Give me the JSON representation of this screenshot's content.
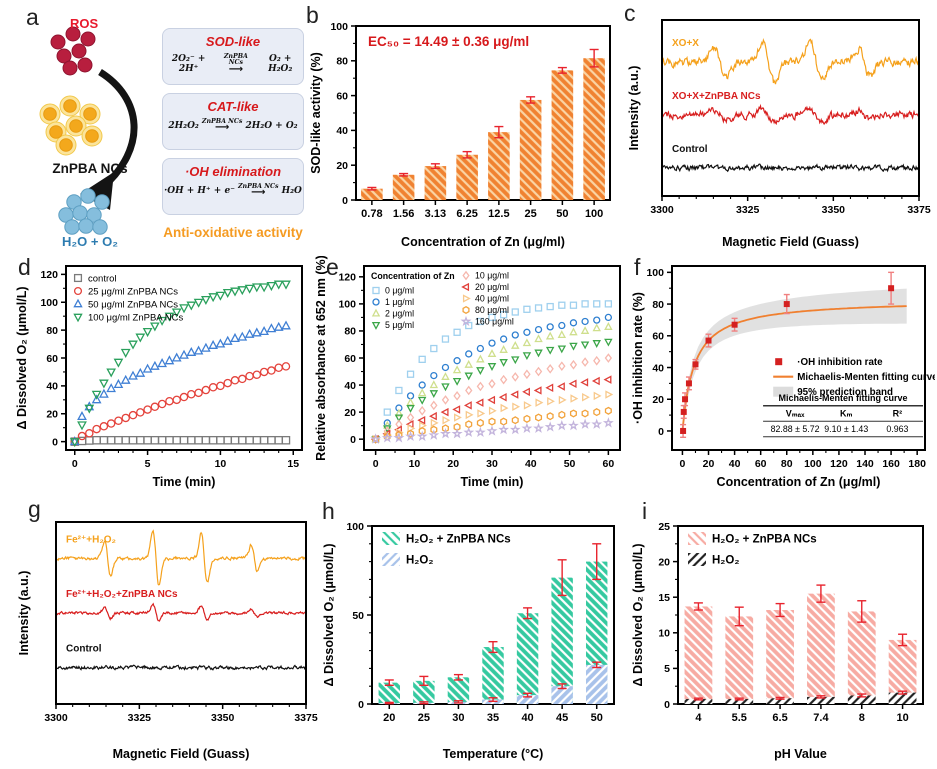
{
  "panels": {
    "a": "a",
    "b": "b",
    "c": "c",
    "d": "d",
    "e": "e",
    "f": "f",
    "g": "g",
    "h": "h",
    "i": "i"
  },
  "panel_a": {
    "label_ros": "ROS",
    "label_nanoclusters": "ZnPBA NCs",
    "label_product": "H₂O + O₂",
    "reactions": [
      {
        "title": "SOD-like",
        "lhs": "2O₂⁻ + 2H⁺",
        "catalyst": "ZnPBA NCs",
        "arrow": "⟶",
        "rhs": "O₂ + H₂O₂"
      },
      {
        "title": "CAT-like",
        "lhs": "2H₂O₂",
        "catalyst": "ZnPBA NCs",
        "arrow": "⟶",
        "rhs": "2H₂O + O₂"
      },
      {
        "title": "·OH elimination",
        "lhs": "·OH + H⁺ + e⁻",
        "catalyst": "ZnPBA NCs",
        "arrow": "⟶",
        "rhs": "H₂O"
      }
    ],
    "footer": "Anti-oxidative activity"
  },
  "chart_data": [
    {
      "panel": "b",
      "type": "bar",
      "annotation": "EC₅₀ = 14.49 ± 0.36 μg/ml",
      "annotation_color": "#D7191C",
      "categories": [
        "0.78",
        "1.56",
        "3.13",
        "6.25",
        "12.5",
        "25",
        "50",
        "100"
      ],
      "xlabel": "Concentration of Zn (μg/ml)",
      "ylabel": "SOD-like activity (%)",
      "ylim": [
        0,
        100
      ],
      "yticks": [
        0,
        20,
        40,
        60,
        80,
        100
      ],
      "y_minor": 1,
      "bar_width": 0.68,
      "error_color": "#E8232D",
      "legend": false,
      "series": [
        {
          "name": "SOD-like activity",
          "fill": "#F08231",
          "stripe": "#FAD4A4",
          "angle": 45,
          "values": [
            6.5,
            14.5,
            19.5,
            26,
            39,
            57.5,
            74.5,
            81.5
          ],
          "errors": [
            0.7,
            0.7,
            1.3,
            1.8,
            3.2,
            1.8,
            1.6,
            5
          ]
        }
      ]
    },
    {
      "panel": "c",
      "type": "epr",
      "xlabel": "Magnetic Field (Guass)",
      "ylabel": "Intensity (a.u.)",
      "xlim": [
        3300,
        3375
      ],
      "xticks": [
        3300,
        3325,
        3350,
        3375
      ],
      "x_minor": 4,
      "traces": [
        {
          "label": "XO+X",
          "color": "#F5A11C",
          "base": 0.24,
          "noise": 3.0,
          "width": 1.7,
          "peaks": [
            3317,
            3331,
            3345,
            3359
          ],
          "amps": [
            30,
            40,
            36,
            26
          ],
          "seed": 7
        },
        {
          "label": "XO+X+ZnPBA NCs",
          "color": "#D81E1E",
          "base": 0.54,
          "noise": 2.6,
          "width": 1.7,
          "peaks": [
            3317,
            3331,
            3345,
            3359
          ],
          "amps": [
            9,
            12,
            11,
            8
          ],
          "seed": 13
        },
        {
          "label": "Control",
          "color": "#111111",
          "base": 0.84,
          "noise": 2.0,
          "width": 1.7,
          "peaks": [],
          "amps": [],
          "seed": 21
        }
      ]
    },
    {
      "panel": "d",
      "type": "scatter",
      "xlabel": "Time (min)",
      "ylabel": "Δ Dissolved O₂ (μmol/L)",
      "xlim": [
        -0.6,
        15.6
      ],
      "xticks": [
        0,
        5,
        10,
        15
      ],
      "x_minor": 4,
      "ylim": [
        -6,
        126
      ],
      "yticks": [
        0,
        20,
        40,
        60,
        80,
        100,
        120
      ],
      "y_minor": 1,
      "x": [
        0,
        0.5,
        1,
        1.5,
        2,
        2.5,
        3,
        3.5,
        4,
        4.5,
        5,
        5.5,
        6,
        6.5,
        7,
        7.5,
        8,
        8.5,
        9,
        9.5,
        10,
        10.5,
        11,
        11.5,
        12,
        12.5,
        13,
        13.5,
        14,
        14.5
      ],
      "series": [
        {
          "name": "control",
          "marker": "square",
          "color": "#7A7A7A",
          "values": [
            0,
            0.5,
            0.8,
            1,
            1,
            1,
            1,
            1,
            1,
            1,
            1,
            1,
            1,
            1,
            1,
            1,
            1,
            1,
            1,
            1,
            1,
            1,
            1,
            1,
            1,
            1,
            1,
            1,
            1,
            1
          ]
        },
        {
          "name": "25 μg/ml ZnPBA NCs",
          "marker": "circle",
          "color": "#E4433C",
          "values": [
            0,
            4,
            6,
            9,
            11,
            13,
            15,
            17,
            19,
            21,
            23,
            25,
            27,
            29,
            30,
            32,
            34,
            35,
            37,
            39,
            40,
            42,
            44,
            45,
            47,
            48,
            50,
            51,
            53,
            54
          ]
        },
        {
          "name": "50 μg/ml ZnPBA NCs",
          "marker": "triangle-up",
          "color": "#3F7FD4",
          "values": [
            0,
            18,
            25,
            30,
            34,
            38,
            41,
            44,
            47,
            49,
            52,
            54,
            56,
            58,
            60,
            62,
            64,
            65,
            67,
            69,
            70,
            72,
            74,
            75,
            77,
            78,
            79,
            81,
            82,
            83
          ]
        },
        {
          "name": "100 μg/ml ZnPBA NCs",
          "marker": "triangle-down",
          "color": "#2AA05C",
          "values": [
            0,
            12,
            24,
            34,
            42,
            50,
            57,
            64,
            70,
            75,
            79,
            83,
            87,
            90,
            93,
            96,
            98,
            100,
            102,
            104,
            105,
            107,
            108,
            109,
            110,
            111,
            111,
            112,
            113,
            113
          ]
        }
      ],
      "legend": {
        "cols": 1
      }
    },
    {
      "panel": "e",
      "type": "scatter",
      "xlabel": "Time (min)",
      "ylabel": "Relative absorbance at 652 nm (%)",
      "xlim": [
        -3,
        63
      ],
      "xticks": [
        0,
        10,
        20,
        30,
        40,
        50,
        60
      ],
      "x_minor": 1,
      "ylim": [
        -8,
        128
      ],
      "yticks": [
        0,
        20,
        40,
        60,
        80,
        100,
        120
      ],
      "y_minor": 1,
      "x": [
        0,
        3,
        6,
        9,
        12,
        15,
        18,
        21,
        24,
        27,
        30,
        33,
        36,
        39,
        42,
        45,
        48,
        51,
        54,
        57,
        60
      ],
      "series": [
        {
          "name": "0 μg/ml",
          "marker": "square",
          "color": "#9FD0EE",
          "values": [
            0,
            20,
            36,
            48,
            59,
            67,
            74,
            79,
            84,
            87,
            90,
            92,
            94,
            96,
            97,
            98,
            99,
            99,
            100,
            100,
            100
          ]
        },
        {
          "name": "1 μg/ml",
          "marker": "circle",
          "color": "#2E7FD0",
          "values": [
            0,
            12,
            23,
            32,
            40,
            47,
            53,
            58,
            63,
            67,
            71,
            74,
            77,
            79,
            81,
            83,
            84,
            86,
            87,
            88,
            90
          ]
        },
        {
          "name": "2 μg/ml",
          "marker": "triangle-up",
          "color": "#CFDF8D",
          "values": [
            0,
            10,
            19,
            27,
            34,
            40,
            46,
            51,
            55,
            59,
            63,
            66,
            69,
            71,
            74,
            76,
            77,
            79,
            80,
            82,
            83
          ]
        },
        {
          "name": "5 μg/ml",
          "marker": "triangle-down",
          "color": "#3BA648",
          "values": [
            0,
            8,
            16,
            23,
            29,
            34,
            39,
            43,
            47,
            51,
            54,
            57,
            59,
            62,
            64,
            66,
            67,
            69,
            70,
            71,
            72
          ]
        },
        {
          "name": "10 μg/ml",
          "marker": "diamond",
          "color": "#F6B7AD",
          "values": [
            0,
            6,
            11,
            16,
            21,
            25,
            29,
            32,
            36,
            39,
            41,
            44,
            46,
            48,
            50,
            52,
            54,
            55,
            57,
            58,
            60
          ]
        },
        {
          "name": "20 μg/ml",
          "marker": "triangle-left",
          "color": "#E0403A",
          "values": [
            0,
            4,
            7,
            11,
            14,
            17,
            20,
            22,
            25,
            27,
            29,
            31,
            33,
            35,
            36,
            38,
            39,
            41,
            42,
            43,
            44
          ]
        },
        {
          "name": "40 μg/ml",
          "marker": "triangle-right",
          "color": "#F8C98C",
          "values": [
            0,
            3,
            5,
            8,
            10,
            12,
            14,
            16,
            18,
            19,
            21,
            23,
            24,
            25,
            27,
            28,
            29,
            30,
            31,
            32,
            33
          ]
        },
        {
          "name": "80 μg/ml",
          "marker": "hexagon",
          "color": "#F2A33C",
          "values": [
            0,
            2,
            3,
            4,
            6,
            7,
            8,
            9,
            11,
            12,
            13,
            13,
            14,
            15,
            16,
            17,
            18,
            19,
            19,
            20,
            21
          ]
        },
        {
          "name": "160 μg/ml",
          "marker": "star",
          "color": "#C3B4DC",
          "values": [
            0,
            1,
            1,
            2,
            2,
            3,
            4,
            4,
            5,
            5,
            6,
            7,
            7,
            8,
            8,
            9,
            10,
            10,
            11,
            11,
            12
          ]
        }
      ],
      "legend": {
        "cols": 2,
        "title": "Concentration of Zn",
        "col_split": 4
      }
    },
    {
      "panel": "f",
      "type": "mm",
      "xlabel": "Concentration of Zn (μg/ml)",
      "ylabel": "·OH inhibition rate (%)",
      "xlim": [
        -8,
        186
      ],
      "xticks": [
        0,
        20,
        40,
        60,
        80,
        100,
        120,
        140,
        160,
        180
      ],
      "x_minor": 1,
      "ylim": [
        -12,
        104
      ],
      "yticks": [
        0,
        20,
        40,
        60,
        80,
        100
      ],
      "y_minor": 1,
      "points": {
        "x": [
          0.5,
          1,
          2,
          5,
          10,
          20,
          40,
          80,
          160
        ],
        "y": [
          0,
          12,
          20,
          30,
          42,
          57,
          67,
          80,
          90
        ],
        "errors": [
          4,
          4,
          4,
          4,
          3,
          4,
          4,
          6,
          10
        ],
        "color": "#D42020",
        "error_color": "#F08080"
      },
      "fit": {
        "vmax": 82.88,
        "km": 9.1,
        "color": "#F08030"
      },
      "band": {
        "color": "#DCDCDC",
        "inner": 4,
        "outer": 11
      },
      "legend": [
        {
          "label": "·OH inhibition rate"
        },
        {
          "label": "Michaelis-Menten fitting curve"
        },
        {
          "label": "95% prediction band"
        }
      ],
      "table": {
        "title": "Michaelis-Menten fitting curve",
        "headers": [
          "Vₘₐₓ",
          "Kₘ",
          "R²"
        ],
        "values": [
          "82.88 ± 5.72",
          "9.10 ± 1.43",
          "0.963"
        ]
      }
    },
    {
      "panel": "g",
      "type": "epr",
      "xlabel": "Magnetic Field (Guass)",
      "ylabel": "Intensity (a.u.)",
      "xlim": [
        3300,
        3375
      ],
      "xticks": [
        3300,
        3325,
        3350,
        3375
      ],
      "x_minor": 4,
      "traces": [
        {
          "label": "Fe²⁺+H₂O₂",
          "color": "#F5A11C",
          "base": 0.2,
          "noise": 1.2,
          "width": 0.9,
          "peaks": [
            3315.5,
            3330,
            3344.5,
            3359.5
          ],
          "amps": [
            34,
            52,
            48,
            26
          ],
          "seed": 5
        },
        {
          "label": "Fe²⁺+H₂O₂+ZnPBA NCs",
          "color": "#D81E1E",
          "base": 0.5,
          "noise": 1.0,
          "width": 0.9,
          "peaks": [
            3315.5,
            3330,
            3344.5,
            3359.5
          ],
          "amps": [
            10,
            16,
            15,
            8
          ],
          "seed": 11
        },
        {
          "label": "Control",
          "color": "#111111",
          "base": 0.8,
          "noise": 1.3,
          "width": 1.0,
          "peaks": [],
          "amps": [],
          "seed": 17
        }
      ]
    },
    {
      "panel": "h",
      "type": "bar",
      "categories": [
        "20",
        "25",
        "30",
        "35",
        "40",
        "45",
        "50"
      ],
      "xlabel": "Temperature (°C)",
      "ylabel": "Δ Dissolved O₂ (μmol/L)",
      "ylim": [
        0,
        100
      ],
      "yticks": [
        0,
        50,
        100
      ],
      "y_minor": 4,
      "bar_width": 0.62,
      "error_color": "#E8232D",
      "legend": true,
      "series": [
        {
          "name": "H₂O₂ + ZnPBA NCs",
          "fill": "#35C9A0",
          "stripe": "#FFFFFF",
          "angle": 45,
          "values": [
            12,
            13,
            15,
            32,
            51,
            71,
            80
          ],
          "errors": [
            1.5,
            2.5,
            1.5,
            3,
            3,
            10,
            10
          ]
        },
        {
          "name": "H₂O₂",
          "fill": "#A8C2EA",
          "stripe": "#FFFFFF",
          "angle": -45,
          "values": [
            0.5,
            0.7,
            1.2,
            2.5,
            5,
            10,
            22
          ],
          "errors": [
            0.4,
            0.5,
            0.6,
            1,
            1,
            1.3,
            1.5
          ]
        }
      ]
    },
    {
      "panel": "i",
      "type": "bar",
      "categories": [
        "4",
        "5.5",
        "6.5",
        "7.4",
        "8",
        "10"
      ],
      "xlabel": "pH Value",
      "ylabel": "Δ Dissolved O₂ (μmol/L)",
      "ylim": [
        0,
        25
      ],
      "yticks": [
        0,
        5,
        10,
        15,
        20,
        25
      ],
      "y_minor": 1,
      "bar_width": 0.68,
      "error_color": "#E8232D",
      "legend": true,
      "series": [
        {
          "name": "H₂O₂ + ZnPBA NCs",
          "fill": "#F7ABA3",
          "stripe": "#FFFFFF",
          "angle": 45,
          "values": [
            13.7,
            12.3,
            13.2,
            15.5,
            13,
            9
          ],
          "errors": [
            0.5,
            1.3,
            0.9,
            1.2,
            1.5,
            0.8
          ]
        },
        {
          "name": "H₂O₂",
          "fill": "#FFFFFF",
          "stripe": "#222222",
          "angle": -45,
          "values": [
            0.7,
            0.7,
            0.8,
            1,
            1.2,
            1.6
          ],
          "errors": [
            0.12,
            0.12,
            0.12,
            0.15,
            0.2,
            0.2
          ]
        }
      ]
    }
  ]
}
